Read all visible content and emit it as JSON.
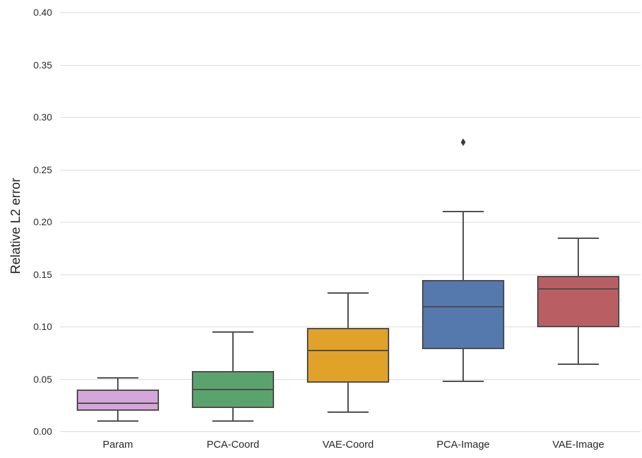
{
  "style": {
    "background": "#ffffff",
    "grid_color": "#dcdcdc",
    "line_color": "#4d4d4d",
    "text_color": "#262626",
    "flier_color": "#3a3a3a"
  },
  "chart_data": {
    "type": "boxplot",
    "title": "",
    "xlabel": "",
    "ylabel": "Relative L2 error",
    "ylim": [
      0.0,
      0.4
    ],
    "grid": "horizontal",
    "legend": "none",
    "yticks": [
      {
        "label": "0.00",
        "value": 0.0
      },
      {
        "label": "0.05",
        "value": 0.05
      },
      {
        "label": "0.10",
        "value": 0.1
      },
      {
        "label": "0.15",
        "value": 0.15
      },
      {
        "label": "0.20",
        "value": 0.2
      },
      {
        "label": "0.25",
        "value": 0.25
      },
      {
        "label": "0.30",
        "value": 0.3
      },
      {
        "label": "0.35",
        "value": 0.35
      },
      {
        "label": "0.40",
        "value": 0.4
      }
    ],
    "categories": [
      "Param",
      "PCA-Coord",
      "VAE-Coord",
      "PCA-Image",
      "VAE-Image"
    ],
    "series": [
      {
        "name": "Param",
        "color": "#d5a6d9",
        "whisker_low": 0.01,
        "q1": 0.02,
        "median": 0.027,
        "q3": 0.039,
        "whisker_high": 0.051,
        "outliers": []
      },
      {
        "name": "PCA-Coord",
        "color": "#5ba36d",
        "whisker_low": 0.01,
        "q1": 0.023,
        "median": 0.04,
        "q3": 0.057,
        "whisker_high": 0.095,
        "outliers": []
      },
      {
        "name": "VAE-Coord",
        "color": "#e1a22a",
        "whisker_low": 0.018,
        "q1": 0.047,
        "median": 0.077,
        "q3": 0.098,
        "whisker_high": 0.132,
        "outliers": []
      },
      {
        "name": "PCA-Image",
        "color": "#5578ad",
        "whisker_low": 0.048,
        "q1": 0.079,
        "median": 0.119,
        "q3": 0.144,
        "whisker_high": 0.21,
        "outliers": [
          0.276
        ]
      },
      {
        "name": "VAE-Image",
        "color": "#b95f64",
        "whisker_low": 0.064,
        "q1": 0.1,
        "median": 0.136,
        "q3": 0.148,
        "whisker_high": 0.184,
        "outliers": []
      }
    ]
  }
}
